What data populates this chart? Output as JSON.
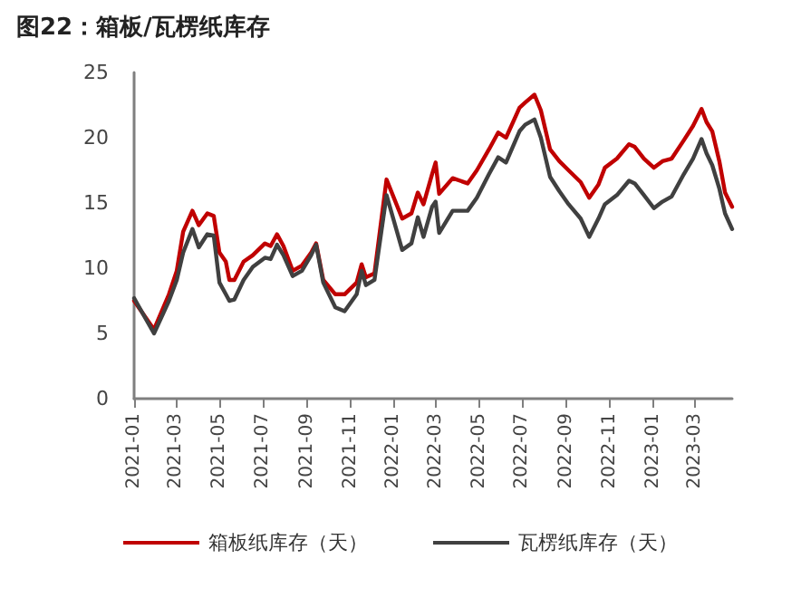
{
  "chart_data": {
    "type": "line",
    "title": "图22：箱板/瓦楞纸库存",
    "x": [
      "2021-01-01",
      "2021-01-29",
      "2021-02-19",
      "2021-03-02",
      "2021-03-11",
      "2021-03-24",
      "2021-04-02",
      "2021-04-14",
      "2021-04-23",
      "2021-05-01",
      "2021-05-10",
      "2021-05-15",
      "2021-05-22",
      "2021-06-04",
      "2021-06-17",
      "2021-07-04",
      "2021-07-12",
      "2021-07-21",
      "2021-07-30",
      "2021-08-12",
      "2021-08-25",
      "2021-09-07",
      "2021-09-14",
      "2021-09-24",
      "2021-10-11",
      "2021-10-24",
      "2021-11-10",
      "2021-11-17",
      "2021-11-23",
      "2021-12-05",
      "2021-12-22",
      "2022-01-13",
      "2022-01-26",
      "2022-02-04",
      "2022-02-12",
      "2022-02-24",
      "2022-03-01",
      "2022-03-06",
      "2022-03-25",
      "2022-04-15",
      "2022-04-28",
      "2022-05-15",
      "2022-05-28",
      "2022-06-08",
      "2022-06-27",
      "2022-07-05",
      "2022-07-18",
      "2022-07-27",
      "2022-08-09",
      "2022-08-22",
      "2022-09-04",
      "2022-09-21",
      "2022-10-03",
      "2022-10-16",
      "2022-10-25",
      "2022-11-11",
      "2022-11-28",
      "2022-12-06",
      "2022-12-19",
      "2023-01-02",
      "2023-01-14",
      "2023-01-27",
      "2023-02-13",
      "2023-02-26",
      "2023-03-10",
      "2023-03-17",
      "2023-03-25",
      "2023-04-04",
      "2023-04-12",
      "2023-04-22"
    ],
    "series": [
      {
        "name": "箱板纸库存（天）",
        "color": "#c00000",
        "values": [
          7.5,
          5.3,
          8.0,
          9.8,
          12.8,
          14.4,
          13.3,
          14.2,
          14.0,
          11.2,
          10.5,
          9.1,
          9.1,
          10.5,
          11.0,
          11.9,
          11.7,
          12.6,
          11.7,
          9.8,
          10.2,
          11.2,
          11.9,
          9.1,
          8.0,
          8.0,
          8.9,
          10.3,
          9.3,
          9.6,
          16.8,
          13.8,
          14.2,
          15.8,
          14.9,
          17.2,
          18.1,
          15.7,
          16.9,
          16.5,
          17.5,
          19.1,
          20.4,
          20.0,
          22.3,
          22.7,
          23.3,
          22.1,
          19.1,
          18.2,
          17.5,
          16.6,
          15.4,
          16.4,
          17.7,
          18.4,
          19.5,
          19.3,
          18.4,
          17.7,
          18.2,
          18.4,
          19.8,
          20.9,
          22.2,
          21.2,
          20.5,
          18.2,
          15.8,
          14.7
        ]
      },
      {
        "name": "瓦楞纸库存（天）",
        "color": "#404040",
        "values": [
          7.7,
          5.0,
          7.5,
          9.1,
          11.2,
          13.0,
          11.6,
          12.6,
          12.5,
          8.9,
          8.0,
          7.5,
          7.6,
          9.1,
          10.1,
          10.8,
          10.7,
          11.8,
          11.0,
          9.4,
          9.8,
          11.0,
          11.8,
          8.9,
          7.0,
          6.7,
          8.0,
          9.8,
          8.7,
          9.1,
          15.6,
          11.4,
          11.9,
          13.9,
          12.4,
          14.7,
          15.1,
          12.7,
          14.4,
          14.4,
          15.4,
          17.2,
          18.5,
          18.1,
          20.5,
          21.0,
          21.4,
          20.0,
          17.0,
          15.9,
          14.9,
          13.8,
          12.4,
          13.8,
          14.9,
          15.6,
          16.7,
          16.5,
          15.6,
          14.6,
          15.1,
          15.5,
          17.2,
          18.4,
          19.9,
          18.8,
          17.9,
          16.1,
          14.2,
          13.0
        ]
      }
    ],
    "xlim": [
      "2021-01-01",
      "2023-04-22"
    ],
    "xticks": [
      "2021-01",
      "2021-03",
      "2021-05",
      "2021-07",
      "2021-09",
      "2021-11",
      "2022-01",
      "2022-03",
      "2022-05",
      "2022-07",
      "2022-09",
      "2022-11",
      "2023-01",
      "2023-03"
    ],
    "ylim": [
      0,
      25
    ],
    "yticks": [
      0,
      5,
      10,
      15,
      20,
      25
    ],
    "grid": false,
    "legend": "bottom",
    "marker": "none",
    "line_style": "solid"
  }
}
